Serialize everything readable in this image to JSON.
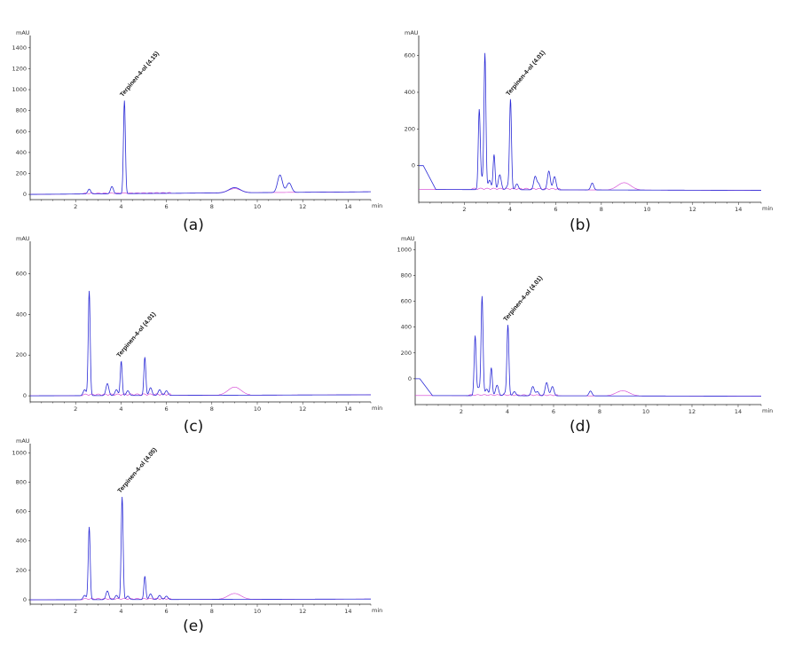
{
  "chart_data": [
    {
      "type": "line",
      "panel": "a",
      "caption": "(a)",
      "y_unit": "mAU",
      "x_unit": "min",
      "xlim": [
        0,
        15
      ],
      "ylim": [
        -50,
        1500
      ],
      "y_ticks": [
        0,
        200,
        400,
        600,
        800,
        1000,
        1200,
        1400
      ],
      "x_ticks": [
        2,
        4,
        6,
        8,
        10,
        12,
        14
      ],
      "baseline": [
        [
          0,
          0
        ],
        [
          15,
          25
        ]
      ],
      "peaks": [
        {
          "x": 2.6,
          "y": 50
        },
        {
          "x": 3.6,
          "y": 75
        },
        {
          "x": 4.15,
          "y": 895
        },
        {
          "x": 9.0,
          "y": 65
        },
        {
          "x": 11.0,
          "y": 185
        },
        {
          "x": 11.4,
          "y": 110
        }
      ],
      "annotations": [
        {
          "text": "Terpinen-4-ol (4.15)",
          "x": 4.15,
          "y": 895
        }
      ]
    },
    {
      "type": "line",
      "panel": "b",
      "caption": "(b)",
      "y_unit": "mAU",
      "x_unit": "min",
      "xlim": [
        0,
        15
      ],
      "ylim": [
        -200,
        700
      ],
      "y_ticks": [
        0,
        200,
        400,
        600
      ],
      "x_ticks": [
        2,
        4,
        6,
        8,
        10,
        12,
        14
      ],
      "baseline": [
        [
          0,
          -130
        ],
        [
          15,
          -135
        ]
      ],
      "start_spike": 0,
      "peaks": [
        {
          "x": 2.65,
          "y": 290
        },
        {
          "x": 2.75,
          "y": -70
        },
        {
          "x": 2.9,
          "y": 610
        },
        {
          "x": 3.1,
          "y": -80
        },
        {
          "x": 3.3,
          "y": 60
        },
        {
          "x": 3.55,
          "y": -50
        },
        {
          "x": 3.9,
          "y": -110
        },
        {
          "x": 4.02,
          "y": 360
        },
        {
          "x": 4.3,
          "y": -100
        },
        {
          "x": 5.1,
          "y": -60
        },
        {
          "x": 5.25,
          "y": -100
        },
        {
          "x": 5.7,
          "y": -30
        },
        {
          "x": 5.95,
          "y": -60
        },
        {
          "x": 7.6,
          "y": -95
        }
      ],
      "annotations": [
        {
          "text": "Terpinen-4-ol (4.01)",
          "x": 4.02,
          "y": 360
        }
      ]
    },
    {
      "type": "line",
      "panel": "c",
      "caption": "(c)",
      "y_unit": "mAU",
      "x_unit": "min",
      "xlim": [
        0,
        15
      ],
      "ylim": [
        -30,
        750
      ],
      "y_ticks": [
        0,
        200,
        400,
        600
      ],
      "x_ticks": [
        2,
        4,
        6,
        8,
        10,
        12,
        14
      ],
      "baseline": [
        [
          0,
          0
        ],
        [
          15,
          5
        ]
      ],
      "peaks": [
        {
          "x": 2.4,
          "y": 30
        },
        {
          "x": 2.6,
          "y": 515
        },
        {
          "x": 3.4,
          "y": 60
        },
        {
          "x": 3.8,
          "y": 30
        },
        {
          "x": 4.01,
          "y": 170
        },
        {
          "x": 4.3,
          "y": 25
        },
        {
          "x": 5.05,
          "y": 190
        },
        {
          "x": 5.3,
          "y": 40
        },
        {
          "x": 5.7,
          "y": 30
        },
        {
          "x": 6.0,
          "y": 25
        }
      ],
      "annotations": [
        {
          "text": "Terpinen-4-ol (4.01)",
          "x": 4.01,
          "y": 170
        }
      ]
    },
    {
      "type": "line",
      "panel": "d",
      "caption": "(d)",
      "y_unit": "mAU",
      "x_unit": "min",
      "xlim": [
        0,
        15
      ],
      "ylim": [
        -200,
        1050
      ],
      "y_ticks": [
        0,
        200,
        400,
        600,
        800,
        1000
      ],
      "x_ticks": [
        2,
        4,
        6,
        8,
        10,
        12,
        14
      ],
      "baseline": [
        [
          0,
          -130
        ],
        [
          15,
          -135
        ]
      ],
      "start_spike": 0,
      "peaks": [
        {
          "x": 2.6,
          "y": 330
        },
        {
          "x": 2.75,
          "y": -70
        },
        {
          "x": 2.9,
          "y": 635
        },
        {
          "x": 3.1,
          "y": -80
        },
        {
          "x": 3.3,
          "y": 85
        },
        {
          "x": 3.55,
          "y": -50
        },
        {
          "x": 3.9,
          "y": -110
        },
        {
          "x": 4.02,
          "y": 415
        },
        {
          "x": 4.3,
          "y": -100
        },
        {
          "x": 5.1,
          "y": -60
        },
        {
          "x": 5.3,
          "y": -100
        },
        {
          "x": 5.7,
          "y": -30
        },
        {
          "x": 5.95,
          "y": -60
        },
        {
          "x": 7.6,
          "y": -95
        }
      ],
      "annotations": [
        {
          "text": "Terpinen-4-ol (4.01)",
          "x": 4.02,
          "y": 415
        }
      ]
    },
    {
      "type": "line",
      "panel": "e",
      "caption": "(e)",
      "y_unit": "mAU",
      "x_unit": "min",
      "xlim": [
        0,
        15
      ],
      "ylim": [
        -30,
        1050
      ],
      "y_ticks": [
        0,
        200,
        400,
        600,
        800,
        1000
      ],
      "x_ticks": [
        2,
        4,
        6,
        8,
        10,
        12,
        14
      ],
      "baseline": [
        [
          0,
          0
        ],
        [
          15,
          5
        ]
      ],
      "peaks": [
        {
          "x": 2.4,
          "y": 30
        },
        {
          "x": 2.6,
          "y": 495
        },
        {
          "x": 3.4,
          "y": 60
        },
        {
          "x": 3.8,
          "y": 30
        },
        {
          "x": 4.05,
          "y": 700
        },
        {
          "x": 4.3,
          "y": 25
        },
        {
          "x": 5.05,
          "y": 160
        },
        {
          "x": 5.3,
          "y": 40
        },
        {
          "x": 5.7,
          "y": 30
        },
        {
          "x": 6.0,
          "y": 25
        }
      ],
      "annotations": [
        {
          "text": "Terpinen-4-ol (4.05)",
          "x": 4.05,
          "y": 700
        }
      ]
    }
  ],
  "colors": {
    "trace": "#2b2bd6",
    "trace_secondary": "#d23ad2",
    "axis": "#222222",
    "text": "#111111"
  }
}
